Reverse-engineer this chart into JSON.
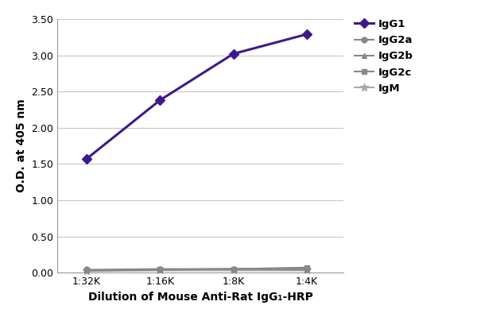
{
  "x_labels": [
    "1:32K",
    "1:16K",
    "1:8K",
    "1:4K"
  ],
  "x_values": [
    1,
    2,
    3,
    4
  ],
  "series": [
    {
      "label": "IgG1",
      "values": [
        1.57,
        2.38,
        3.02,
        3.29
      ],
      "color": "#3d1a8c",
      "marker": "D",
      "markersize": 6,
      "linewidth": 2.2,
      "zorder": 5
    },
    {
      "label": "IgG2a",
      "values": [
        0.04,
        0.05,
        0.05,
        0.06
      ],
      "color": "#888888",
      "marker": "o",
      "markersize": 5,
      "linewidth": 1.5,
      "zorder": 4
    },
    {
      "label": "IgG2b",
      "values": [
        0.03,
        0.04,
        0.05,
        0.04
      ],
      "color": "#888888",
      "marker": "^",
      "markersize": 5,
      "linewidth": 1.5,
      "zorder": 3
    },
    {
      "label": "IgG2c",
      "values": [
        0.03,
        0.04,
        0.05,
        0.07
      ],
      "color": "#888888",
      "marker": "s",
      "markersize": 5,
      "linewidth": 1.5,
      "zorder": 2
    },
    {
      "label": "IgM",
      "values": [
        0.02,
        0.03,
        0.03,
        0.03
      ],
      "color": "#aaaaaa",
      "marker": "*",
      "markersize": 7,
      "linewidth": 1.5,
      "zorder": 1
    }
  ],
  "xlabel": "Dilution of Mouse Anti-Rat IgG₁-HRP",
  "ylabel": "O.D. at 405 nm",
  "ylim": [
    0.0,
    3.5
  ],
  "yticks": [
    0.0,
    0.5,
    1.0,
    1.5,
    2.0,
    2.5,
    3.0,
    3.5
  ],
  "ytick_labels": [
    "0.00",
    "0.50",
    "1.00",
    "1.50",
    "2.00",
    "2.50",
    "3.00",
    "3.50"
  ],
  "axis_label_fontsize": 10,
  "tick_fontsize": 9,
  "legend_fontsize": 9.5,
  "background_color": "#ffffff",
  "grid_color": "#c8c8c8"
}
